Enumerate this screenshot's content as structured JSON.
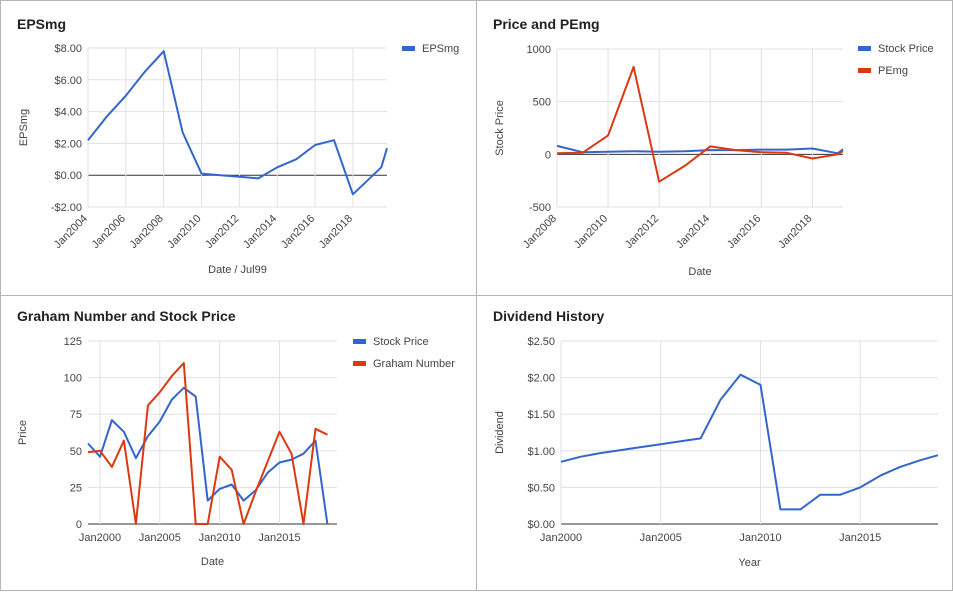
{
  "chart_data": [
    {
      "type": "line",
      "title": "EPSmg",
      "xlabel": "Date / Jul99",
      "ylabel": "EPSmg",
      "x_ticks": [
        "Jan2004",
        "Jan2006",
        "Jan2008",
        "Jan2010",
        "Jan2012",
        "Jan2014",
        "Jan2016",
        "Jan2018"
      ],
      "x_tick_years": [
        2004,
        2006,
        2008,
        2010,
        2012,
        2014,
        2016,
        2018
      ],
      "xlim": [
        2004,
        2019.8
      ],
      "y_ticks": [
        -2,
        0,
        2,
        4,
        6,
        8
      ],
      "y_tick_labels": [
        "-$2.00",
        "$0.00",
        "$2.00",
        "$4.00",
        "$6.00",
        "$8.00"
      ],
      "ylim": [
        -2,
        8
      ],
      "legend_position": "right",
      "series": [
        {
          "name": "EPSmg",
          "color": "#3366cc",
          "x": [
            2004,
            2005,
            2006,
            2007,
            2008,
            2009,
            2010,
            2011,
            2012,
            2013,
            2014,
            2015,
            2016,
            2017,
            2018,
            2019.5,
            2019.8
          ],
          "y": [
            2.2,
            3.7,
            5.0,
            6.5,
            7.8,
            2.7,
            0.1,
            0.0,
            -0.1,
            -0.2,
            0.5,
            1.0,
            1.9,
            2.2,
            -1.2,
            0.5,
            1.7
          ]
        }
      ]
    },
    {
      "type": "line",
      "title": "Price and PEmg",
      "xlabel": "Date",
      "ylabel": "Stock Price",
      "x_ticks": [
        "Jan2008",
        "Jan2010",
        "Jan2012",
        "Jan2014",
        "Jan2016",
        "Jan2018"
      ],
      "x_tick_years": [
        2008,
        2010,
        2012,
        2014,
        2016,
        2018
      ],
      "xlim": [
        2008,
        2019.2
      ],
      "y_ticks": [
        -500,
        0,
        500,
        1000
      ],
      "y_tick_labels": [
        "-500",
        "0",
        "500",
        "1000"
      ],
      "ylim": [
        -500,
        1000
      ],
      "legend_position": "right",
      "series": [
        {
          "name": "Stock Price",
          "color": "#3366cc",
          "x": [
            2008,
            2009,
            2010,
            2011,
            2012,
            2013,
            2014,
            2015,
            2016,
            2017,
            2018,
            2019,
            2019.2
          ],
          "y": [
            80,
            20,
            25,
            30,
            25,
            30,
            40,
            40,
            45,
            45,
            55,
            10,
            50
          ]
        },
        {
          "name": "PEmg",
          "color": "#dc3912",
          "x": [
            2008,
            2009,
            2010,
            2011,
            2012,
            2013,
            2014,
            2015,
            2016,
            2017,
            2018,
            2019,
            2019.2
          ],
          "y": [
            10,
            15,
            180,
            830,
            -260,
            -110,
            75,
            40,
            20,
            15,
            -40,
            0,
            30
          ]
        }
      ]
    },
    {
      "type": "line",
      "title": "Graham Number and Stock Price",
      "xlabel": "Date",
      "ylabel": "Price",
      "x_ticks": [
        "Jan2000",
        "Jan2005",
        "Jan2010",
        "Jan2015"
      ],
      "x_tick_years": [
        2000,
        2005,
        2010,
        2015
      ],
      "xlim": [
        1999,
        2019.8
      ],
      "y_ticks": [
        0,
        25,
        50,
        75,
        100,
        125
      ],
      "y_tick_labels": [
        "0",
        "25",
        "50",
        "75",
        "100",
        "125"
      ],
      "ylim": [
        0,
        125
      ],
      "legend_position": "right",
      "series": [
        {
          "name": "Stock Price",
          "color": "#3366cc",
          "x": [
            1999,
            2000,
            2001,
            2002,
            2003,
            2004,
            2005,
            2006,
            2007,
            2008,
            2009,
            2010,
            2011,
            2012,
            2013,
            2014,
            2015,
            2016,
            2017,
            2018,
            2019
          ],
          "y": [
            55,
            46,
            71,
            63,
            45,
            60,
            70,
            85,
            93,
            87,
            16,
            24,
            27,
            16,
            23,
            35,
            42,
            44,
            48,
            57,
            0
          ]
        },
        {
          "name": "Graham Number",
          "color": "#dc3912",
          "x": [
            1999,
            2000,
            2001,
            2002,
            2003,
            2004,
            2005,
            2006,
            2007,
            2008,
            2009,
            2010,
            2011,
            2012,
            2013,
            2015,
            2016,
            2017,
            2018,
            2019
          ],
          "y": [
            49,
            50,
            39,
            57,
            0,
            81,
            90,
            101,
            110,
            0,
            0,
            46,
            37,
            0,
            22,
            63,
            48,
            0,
            65,
            61
          ]
        }
      ]
    },
    {
      "type": "line",
      "title": "Dividend History",
      "xlabel": "Year",
      "ylabel": "Dividend",
      "x_ticks": [
        "Jan2000",
        "Jan2005",
        "Jan2010",
        "Jan2015"
      ],
      "x_tick_years": [
        2000,
        2005,
        2010,
        2015
      ],
      "xlim": [
        2000,
        2018.9
      ],
      "y_ticks": [
        0,
        0.5,
        1,
        1.5,
        2,
        2.5
      ],
      "y_tick_labels": [
        "$0.00",
        "$0.50",
        "$1.00",
        "$1.50",
        "$2.00",
        "$2.50"
      ],
      "ylim": [
        0,
        2.5
      ],
      "legend_position": "none",
      "series": [
        {
          "name": "",
          "color": "#3366cc",
          "x": [
            2000,
            2001,
            2002,
            2003,
            2004,
            2005,
            2006,
            2007,
            2008,
            2009,
            2010,
            2011,
            2012,
            2013,
            2014,
            2015,
            2016,
            2017,
            2018,
            2018.9
          ],
          "y": [
            0.85,
            0.92,
            0.97,
            1.01,
            1.05,
            1.09,
            1.13,
            1.17,
            1.7,
            2.04,
            1.9,
            0.2,
            0.2,
            0.4,
            0.4,
            0.5,
            0.66,
            0.78,
            0.87,
            0.94
          ]
        }
      ]
    }
  ]
}
